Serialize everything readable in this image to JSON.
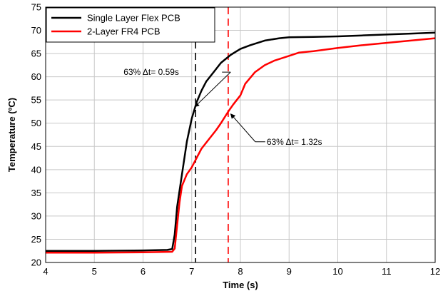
{
  "chart_data": {
    "type": "line",
    "xlabel": "Time (s)",
    "ylabel": "Temperature (ºC)",
    "xlim": [
      4,
      12
    ],
    "ylim": [
      20,
      75
    ],
    "xticks": [
      "4",
      "5",
      "6",
      "7",
      "8",
      "9",
      "10",
      "11",
      "12"
    ],
    "yticks": [
      "20",
      "25",
      "30",
      "35",
      "40",
      "45",
      "50",
      "55",
      "60",
      "65",
      "70",
      "75"
    ],
    "grid": true,
    "legend_position": "top-left",
    "series": [
      {
        "name": "Single Layer Flex PCB",
        "color": "#000000",
        "x": [
          4.0,
          5.0,
          6.0,
          6.5,
          6.6,
          6.65,
          6.7,
          6.8,
          6.9,
          7.0,
          7.1,
          7.2,
          7.3,
          7.45,
          7.6,
          7.8,
          8.0,
          8.2,
          8.5,
          8.8,
          9.0,
          9.5,
          10.0,
          10.5,
          11.0,
          11.5,
          12.0
        ],
        "y": [
          22.5,
          22.5,
          22.6,
          22.7,
          22.9,
          26.0,
          32.0,
          39.0,
          46.0,
          51.0,
          54.5,
          57.0,
          59.0,
          61.0,
          63.0,
          64.7,
          66.0,
          66.8,
          67.8,
          68.3,
          68.5,
          68.6,
          68.7,
          68.9,
          69.1,
          69.3,
          69.5
        ]
      },
      {
        "name": "2-Layer FR4 PCB",
        "color": "#ff0000",
        "x": [
          4.0,
          5.0,
          6.0,
          6.6,
          6.65,
          6.7,
          6.75,
          6.8,
          6.9,
          7.0,
          7.1,
          7.2,
          7.35,
          7.5,
          7.6,
          7.75,
          7.85,
          8.0,
          8.1,
          8.3,
          8.5,
          8.7,
          9.0,
          9.2,
          9.5,
          10.0,
          10.5,
          11.0,
          11.5,
          12.0
        ],
        "y": [
          22.1,
          22.1,
          22.2,
          22.3,
          23.0,
          28.0,
          33.0,
          36.5,
          39.0,
          40.5,
          42.5,
          44.5,
          46.5,
          48.5,
          50.0,
          52.5,
          54.0,
          56.0,
          58.5,
          61.0,
          62.5,
          63.5,
          64.5,
          65.2,
          65.5,
          66.2,
          66.8,
          67.3,
          67.8,
          68.3
        ]
      }
    ],
    "vlines": [
      {
        "x": 7.08,
        "color": "#000000",
        "dash": true
      },
      {
        "x": 7.75,
        "color": "#ff0000",
        "dash": true
      }
    ],
    "annotations": [
      {
        "text": "63% Δt= 0.59s",
        "target_x": 7.06,
        "target_y": 53.5,
        "label_x": 5.6,
        "label_y": 61
      },
      {
        "text": "63% Δt= 1.32s",
        "target_x": 7.8,
        "target_y": 52.0,
        "label_x": 8.1,
        "label_y": 46
      }
    ]
  }
}
